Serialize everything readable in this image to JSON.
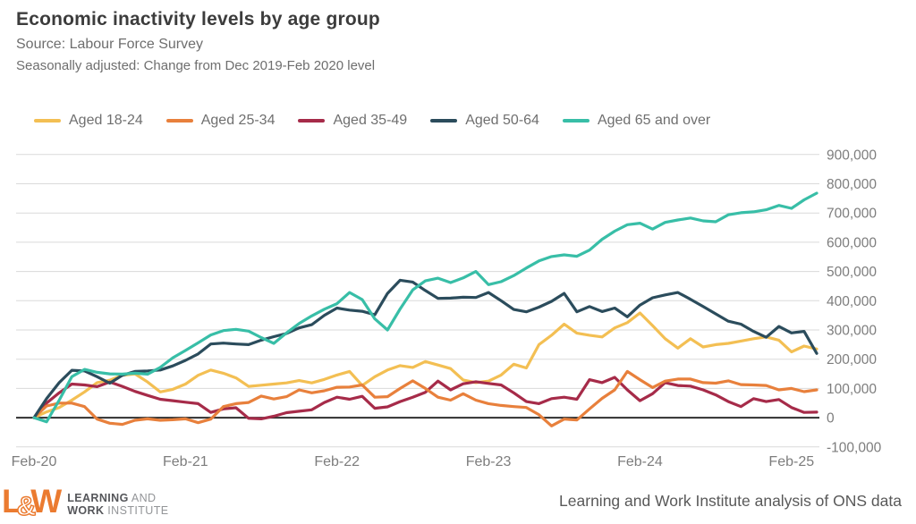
{
  "header": {
    "title": "Economic inactivity levels by age group",
    "source": "Source: Labour Force Survey",
    "note": "Seasonally adjusted: Change from Dec 2019-Feb 2020 level"
  },
  "chart_data": {
    "type": "line",
    "title": "Economic inactivity levels by age group",
    "x_start": "Feb-2020",
    "x_interval": "monthly",
    "n_points": 63,
    "grid": "horizontal",
    "legend_position": "top",
    "y_axis_side": "right",
    "ylim": [
      -100000,
      900000
    ],
    "y_ticks": [
      {
        "label": "900,000",
        "value": 900000
      },
      {
        "label": "800,000",
        "value": 800000
      },
      {
        "label": "700,000",
        "value": 700000
      },
      {
        "label": "600,000",
        "value": 600000
      },
      {
        "label": "500,000",
        "value": 500000
      },
      {
        "label": "400,000",
        "value": 400000
      },
      {
        "label": "300,000",
        "value": 300000
      },
      {
        "label": "200,000",
        "value": 200000
      },
      {
        "label": "100,000",
        "value": 100000
      },
      {
        "label": "0",
        "value": 0
      },
      {
        "label": "-100,000",
        "value": -100000
      }
    ],
    "x_ticks": [
      {
        "label": "Feb-20",
        "month_index": 0
      },
      {
        "label": "Feb-21",
        "month_index": 12
      },
      {
        "label": "Feb-22",
        "month_index": 24
      },
      {
        "label": "Feb-23",
        "month_index": 36
      },
      {
        "label": "Feb-24",
        "month_index": 48
      },
      {
        "label": "Feb-25",
        "month_index": 60
      }
    ],
    "series": [
      {
        "name": "Aged 18-24",
        "color": "#F3BF53",
        "values": [
          0,
          20000,
          35000,
          60000,
          88000,
          120000,
          128000,
          145000,
          150000,
          122000,
          88000,
          97000,
          115000,
          145000,
          163000,
          152000,
          136000,
          107000,
          111000,
          115000,
          119000,
          127000,
          119000,
          131000,
          146000,
          158000,
          110000,
          140000,
          163000,
          178000,
          172000,
          192000,
          180000,
          168000,
          129000,
          120000,
          125000,
          146000,
          183000,
          170000,
          250000,
          282000,
          320000,
          289000,
          282000,
          276000,
          307000,
          325000,
          358000,
          315000,
          270000,
          238000,
          270000,
          242000,
          250000,
          254000,
          262000,
          270000,
          276000,
          265000,
          225000,
          245000,
          235000
        ]
      },
      {
        "name": "Aged 25-34",
        "color": "#E8803C",
        "values": [
          0,
          40000,
          50000,
          50000,
          38000,
          -5000,
          -19000,
          -23000,
          -9000,
          -4000,
          -9000,
          -7000,
          -4000,
          -17000,
          -5000,
          38000,
          48000,
          52000,
          74000,
          64000,
          72000,
          95000,
          85000,
          92000,
          104000,
          105000,
          112000,
          70000,
          72000,
          100000,
          126000,
          100000,
          70000,
          60000,
          82000,
          60000,
          48000,
          42000,
          38000,
          35000,
          10000,
          -28000,
          -5000,
          -8000,
          30000,
          66000,
          95000,
          158000,
          130000,
          103000,
          125000,
          132000,
          132000,
          120000,
          118000,
          126000,
          113000,
          112000,
          110000,
          95000,
          100000,
          89000,
          95000
        ]
      },
      {
        "name": "Aged 35-49",
        "color": "#A62B49",
        "values": [
          0,
          50000,
          85000,
          115000,
          112000,
          106000,
          122000,
          107000,
          90000,
          76000,
          63000,
          58000,
          53000,
          48000,
          18000,
          30000,
          34000,
          -2000,
          -4000,
          5000,
          17000,
          22000,
          27000,
          52000,
          70000,
          63000,
          73000,
          32000,
          37000,
          55000,
          70000,
          87000,
          125000,
          95000,
          116000,
          123000,
          117000,
          112000,
          85000,
          55000,
          48000,
          65000,
          70000,
          63000,
          130000,
          120000,
          138000,
          95000,
          58000,
          82000,
          120000,
          110000,
          108000,
          95000,
          78000,
          55000,
          38000,
          65000,
          55000,
          62000,
          35000,
          18000,
          19000
        ]
      },
      {
        "name": "Aged 50-64",
        "color": "#2B4C5C",
        "values": [
          0,
          65000,
          120000,
          162000,
          160000,
          140000,
          118000,
          145000,
          158000,
          160000,
          163000,
          177000,
          196000,
          218000,
          252000,
          255000,
          252000,
          250000,
          265000,
          277000,
          288000,
          307000,
          318000,
          350000,
          375000,
          368000,
          364000,
          352000,
          425000,
          470000,
          464000,
          435000,
          408000,
          409000,
          412000,
          411000,
          428000,
          400000,
          370000,
          362000,
          378000,
          398000,
          425000,
          362000,
          380000,
          363000,
          375000,
          345000,
          385000,
          410000,
          420000,
          428000,
          405000,
          380000,
          355000,
          330000,
          320000,
          295000,
          275000,
          312000,
          290000,
          295000,
          220000
        ]
      },
      {
        "name": "Aged 65 and over",
        "color": "#38BEA7",
        "values": [
          0,
          -14000,
          60000,
          140000,
          165000,
          155000,
          150000,
          149000,
          152000,
          149000,
          172000,
          205000,
          230000,
          256000,
          283000,
          298000,
          302000,
          296000,
          274000,
          254000,
          290000,
          322000,
          348000,
          371000,
          390000,
          428000,
          404000,
          338000,
          300000,
          372000,
          437000,
          468000,
          477000,
          462000,
          478000,
          500000,
          455000,
          465000,
          486000,
          512000,
          536000,
          551000,
          557000,
          552000,
          573000,
          610000,
          638000,
          660000,
          665000,
          645000,
          668000,
          676000,
          683000,
          673000,
          670000,
          694000,
          701000,
          704000,
          711000,
          726000,
          716000,
          745000,
          768000
        ]
      }
    ]
  },
  "footer": {
    "logo_mark_l": "L",
    "logo_mark_amp": "&",
    "logo_mark_w": "W",
    "logo_line1_bold": "LEARNING",
    "logo_line1_light": " AND",
    "logo_line2_bold": "WORK",
    "logo_line2_light": " INSTITUTE",
    "credit": "Learning and Work Institute analysis of ONS data"
  }
}
